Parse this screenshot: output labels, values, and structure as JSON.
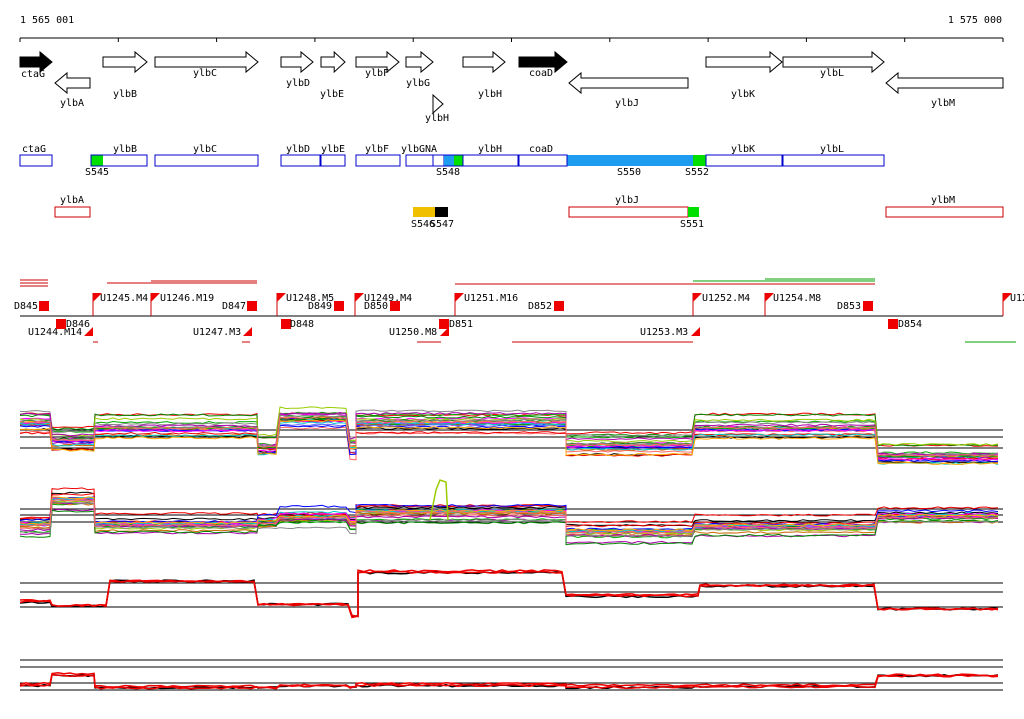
{
  "axis": {
    "start": "1 565 001",
    "end": "1 575 000"
  },
  "genes": [
    "ctaG",
    "ylbA",
    "ylbB",
    "ylbC",
    "ylbD",
    "ylbE",
    "ylbF",
    "ylbG",
    "ylbH",
    "ylbH",
    "coaD",
    "ylbJ",
    "ylbK",
    "ylbL",
    "ylbM"
  ],
  "track1": {
    "genes": [
      "ctaG",
      "ylbB",
      "ylbC",
      "ylbD",
      "ylbE",
      "ylbF",
      "ylbGNA",
      "ylbH",
      "coaD",
      "ylbK",
      "ylbL"
    ],
    "segments": [
      "S545",
      "S548",
      "S550",
      "S552"
    ]
  },
  "track2": {
    "genes": [
      "ylbA",
      "ylbJ",
      "ylbM"
    ],
    "segments": [
      "S546",
      "S547",
      "S551"
    ]
  },
  "transcripts": [
    "D845",
    "U1244.M14",
    "D846",
    "U1245.M4",
    "U1246.M19",
    "D847",
    "U1247.M3",
    "U1248.M5",
    "D848",
    "D849",
    "D850",
    "U1249.M4",
    "U1250.M8",
    "D851",
    "U1251.M16",
    "D852",
    "U1253.M3",
    "U1252.M4",
    "U1254.M8",
    "D853",
    "D854",
    "U12"
  ]
}
